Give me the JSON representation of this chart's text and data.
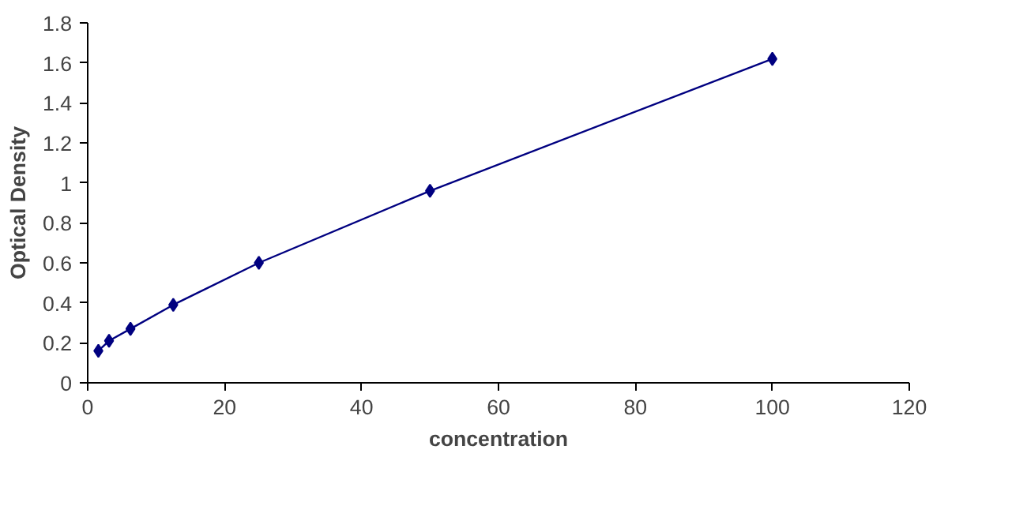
{
  "chart_data": {
    "type": "line",
    "xlabel": "concentration",
    "ylabel": "Optical Density",
    "series": [
      {
        "color": "#000080",
        "x": [
          1.56,
          3.12,
          6.25,
          12.5,
          25,
          50,
          100
        ],
        "values": [
          0.16,
          0.21,
          0.27,
          0.39,
          0.6,
          0.96,
          1.62
        ]
      }
    ],
    "xlim": [
      0,
      120
    ],
    "xticks": [
      0,
      20,
      40,
      60,
      80,
      100,
      120
    ],
    "ylim": [
      0,
      1.8
    ],
    "yticks": [
      0,
      {
        "value": 0.2,
        "label": "0.2"
      },
      {
        "value": 0.4,
        "label": "0.4"
      },
      {
        "value": 0.6,
        "label": "0.6"
      },
      {
        "value": 0.8,
        "label": "0.8"
      },
      1,
      {
        "value": 1.2,
        "label": "1.2"
      },
      {
        "value": 1.4,
        "label": "1.4"
      },
      {
        "value": 1.6,
        "label": "1.6"
      },
      {
        "value": 1.8,
        "label": "1.8"
      }
    ],
    "marker": "diamond",
    "grid": false
  }
}
